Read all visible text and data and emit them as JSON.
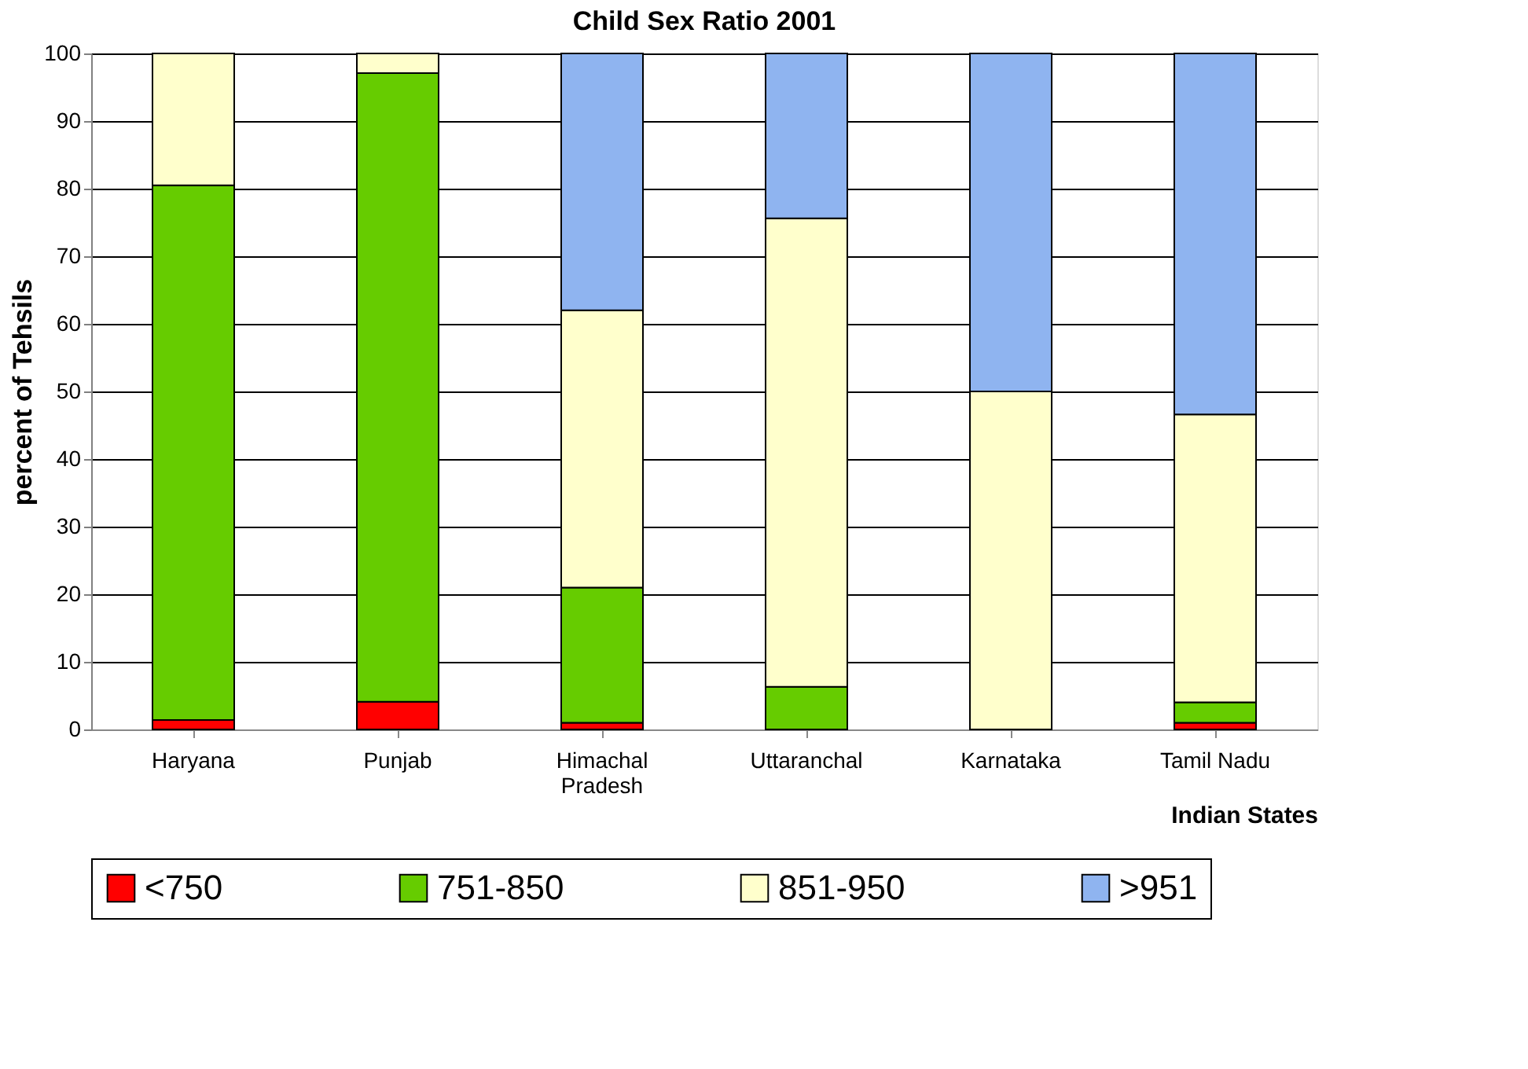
{
  "chart_data": {
    "type": "bar",
    "title": "Child Sex Ratio 2001",
    "xlabel": "Indian States",
    "ylabel": "percent of Tehsils",
    "categories": [
      "Haryana",
      "Punjab",
      "Himachal Pradesh",
      "Uttaranchal",
      "Karnataka",
      "Tamil Nadu"
    ],
    "stacked": true,
    "series": [
      {
        "name": "<750",
        "color": "#ff0000",
        "values": [
          1.4,
          4.1,
          1,
          null,
          null,
          1
        ]
      },
      {
        "name": "751-850",
        "color": "#66cc00",
        "values": [
          79.1,
          93,
          20,
          6.3,
          null,
          3
        ]
      },
      {
        "name": "851-950",
        "color": "#ffffcc",
        "values": [
          19.5,
          2.9,
          41,
          69.3,
          50,
          42.6
        ]
      },
      {
        "name": ">951",
        "color": "#8fb4f0",
        "values": [
          null,
          null,
          38,
          24.4,
          50,
          53.4
        ]
      }
    ],
    "ylim": [
      0,
      100
    ],
    "yticks": [
      0,
      10,
      20,
      30,
      40,
      50,
      60,
      70,
      80,
      90,
      100
    ],
    "grid": "y",
    "legend": "bottom"
  }
}
